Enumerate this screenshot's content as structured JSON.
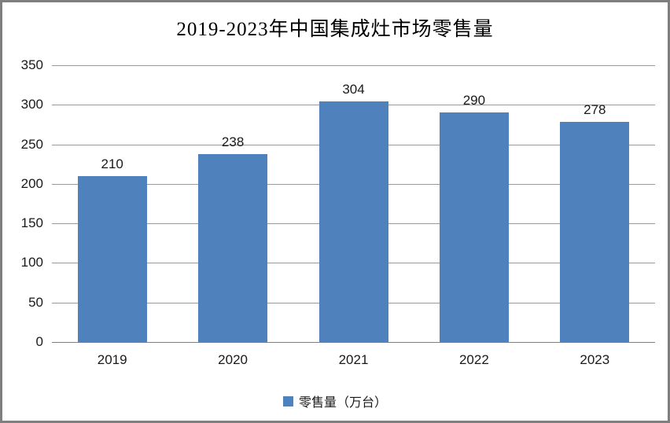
{
  "title": "2019-2023年中国集成灶市场零售量",
  "legend": {
    "label": "零售量（万台）"
  },
  "colors": {
    "bar": "#4F81BD",
    "gridline": "#9a9a9a",
    "axis_line": "#808080",
    "frame_border": "#7f7f7f",
    "text": "#1a1a1a",
    "background": "#ffffff"
  },
  "chart_data": {
    "type": "bar",
    "title": "2019-2023年中国集成灶市场零售量",
    "categories": [
      "2019",
      "2020",
      "2021",
      "2022",
      "2023"
    ],
    "values": [
      210,
      238,
      304,
      290,
      278
    ],
    "series_name": "零售量（万台）",
    "xlabel": "",
    "ylabel": "",
    "ylim": [
      0,
      350
    ],
    "yticks": [
      0,
      50,
      100,
      150,
      200,
      250,
      300,
      350
    ],
    "grid": true,
    "bar_color": "#4F81BD",
    "legend_position": "bottom",
    "data_labels": true
  }
}
